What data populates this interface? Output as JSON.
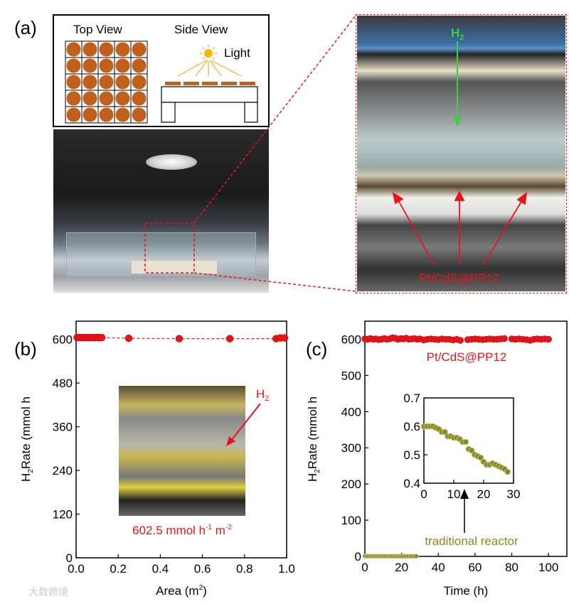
{
  "panel_labels": {
    "a": "(a)",
    "b": "(b)",
    "c": "(c)"
  },
  "colors": {
    "red": "#e8141c",
    "olive": "#8a8a1e",
    "catalyst": "#c0601a",
    "sun": "#f5b800",
    "h2_arrow": "#3cd040"
  },
  "schematic": {
    "top_view": "Top View",
    "side_view": "Side View",
    "light": "Light",
    "sun_icon": "sun-icon"
  },
  "zoom_photo": {
    "h2_label": "H",
    "h2_sub": "2",
    "catalyst_label": "Pt/CdS@PP12"
  },
  "watermark": "大数跨境",
  "chart_data": [
    {
      "type": "scatter",
      "panel": "(b)",
      "xlabel": "Area (m",
      "xlabel_sup": "2",
      "xlabel_end": ")",
      "ylabel": "Rate (mmol h",
      "ylabel_prefix": "H",
      "ylabel_sub": "2",
      "xlim": [
        0,
        1.0
      ],
      "ylim": [
        0,
        650
      ],
      "xticks": [
        "0.0",
        "0.2",
        "0.4",
        "0.6",
        "0.8",
        "1.0"
      ],
      "yticks": [
        "0",
        "120",
        "240",
        "360",
        "480",
        "600"
      ],
      "line_style": "dashed",
      "x": [
        0.005,
        0.015,
        0.025,
        0.035,
        0.045,
        0.055,
        0.065,
        0.075,
        0.085,
        0.095,
        0.105,
        0.115,
        0.122,
        0.25,
        0.49,
        0.73,
        0.95,
        0.97,
        0.99
      ],
      "y": [
        605,
        605,
        605,
        605,
        605,
        605,
        605,
        605,
        605,
        605,
        605,
        605,
        605,
        603,
        602,
        602,
        602,
        604,
        604
      ],
      "inset": {
        "h2": "H",
        "h2_sub": "2",
        "value_label": "602.5 mmol h",
        "value_sup1": "-1",
        "value_mid": " m",
        "value_sup2": "-2"
      }
    },
    {
      "type": "scatter",
      "panel": "(c)",
      "xlabel": "Time (h)",
      "ylabel": "Rate (mmol h",
      "ylabel_prefix": "H",
      "ylabel_sub": "2",
      "xlim": [
        0,
        110
      ],
      "ylim": [
        0,
        650
      ],
      "xticks": [
        "0",
        "20",
        "40",
        "60",
        "80",
        "100"
      ],
      "yticks": [
        "0",
        "100",
        "200",
        "300",
        "400",
        "500",
        "600"
      ],
      "series": [
        {
          "name": "Pt/CdS@PP12",
          "color": "#e8141c",
          "x": [
            0,
            1.5,
            3,
            4.5,
            6,
            7.5,
            9,
            10.5,
            12,
            13.5,
            15,
            16.5,
            18,
            19.5,
            21,
            22.5,
            24,
            25.5,
            27,
            28.5,
            30,
            32,
            34,
            36,
            38,
            40,
            42,
            44,
            46,
            48,
            50,
            52,
            56,
            58,
            60,
            62,
            64,
            66,
            68,
            70,
            72,
            74,
            76,
            80,
            82,
            84,
            86,
            88,
            90,
            92,
            94,
            96,
            98,
            100
          ],
          "y": [
            601,
            600,
            602,
            600,
            601,
            599,
            600,
            602,
            600,
            601,
            604,
            603,
            600,
            602,
            601,
            603,
            600,
            601,
            602,
            600,
            601,
            598,
            600,
            601,
            600,
            599,
            601,
            600,
            600,
            598,
            600,
            597,
            599,
            600,
            601,
            600,
            599,
            600,
            601,
            600,
            600,
            601,
            602,
            601,
            600,
            601,
            600,
            599,
            597,
            600,
            601,
            600,
            601,
            600
          ]
        },
        {
          "name": "traditional reactor",
          "color": "#8a8a1e",
          "x": [
            0,
            1,
            2,
            3,
            4,
            5,
            6,
            7,
            8,
            9,
            10,
            11,
            12,
            13,
            14,
            15,
            16,
            17,
            18,
            19,
            20,
            21,
            22,
            23,
            24,
            25,
            26,
            27,
            28
          ],
          "y": [
            0.6,
            0.6,
            0.6,
            0.6,
            0.595,
            0.59,
            0.58,
            0.58,
            0.565,
            0.565,
            0.56,
            0.56,
            0.555,
            0.545,
            0.545,
            0.52,
            0.515,
            0.5,
            0.495,
            0.49,
            0.475,
            0.465,
            0.465,
            0.47,
            0.465,
            0.46,
            0.455,
            0.45,
            0.44
          ]
        }
      ],
      "inset": {
        "xlim": [
          0,
          30
        ],
        "ylim": [
          0.4,
          0.7
        ],
        "xticks": [
          "0",
          "10",
          "20",
          "30"
        ],
        "yticks": [
          "0.4",
          "0.5",
          "0.6",
          "0.7"
        ]
      }
    }
  ]
}
